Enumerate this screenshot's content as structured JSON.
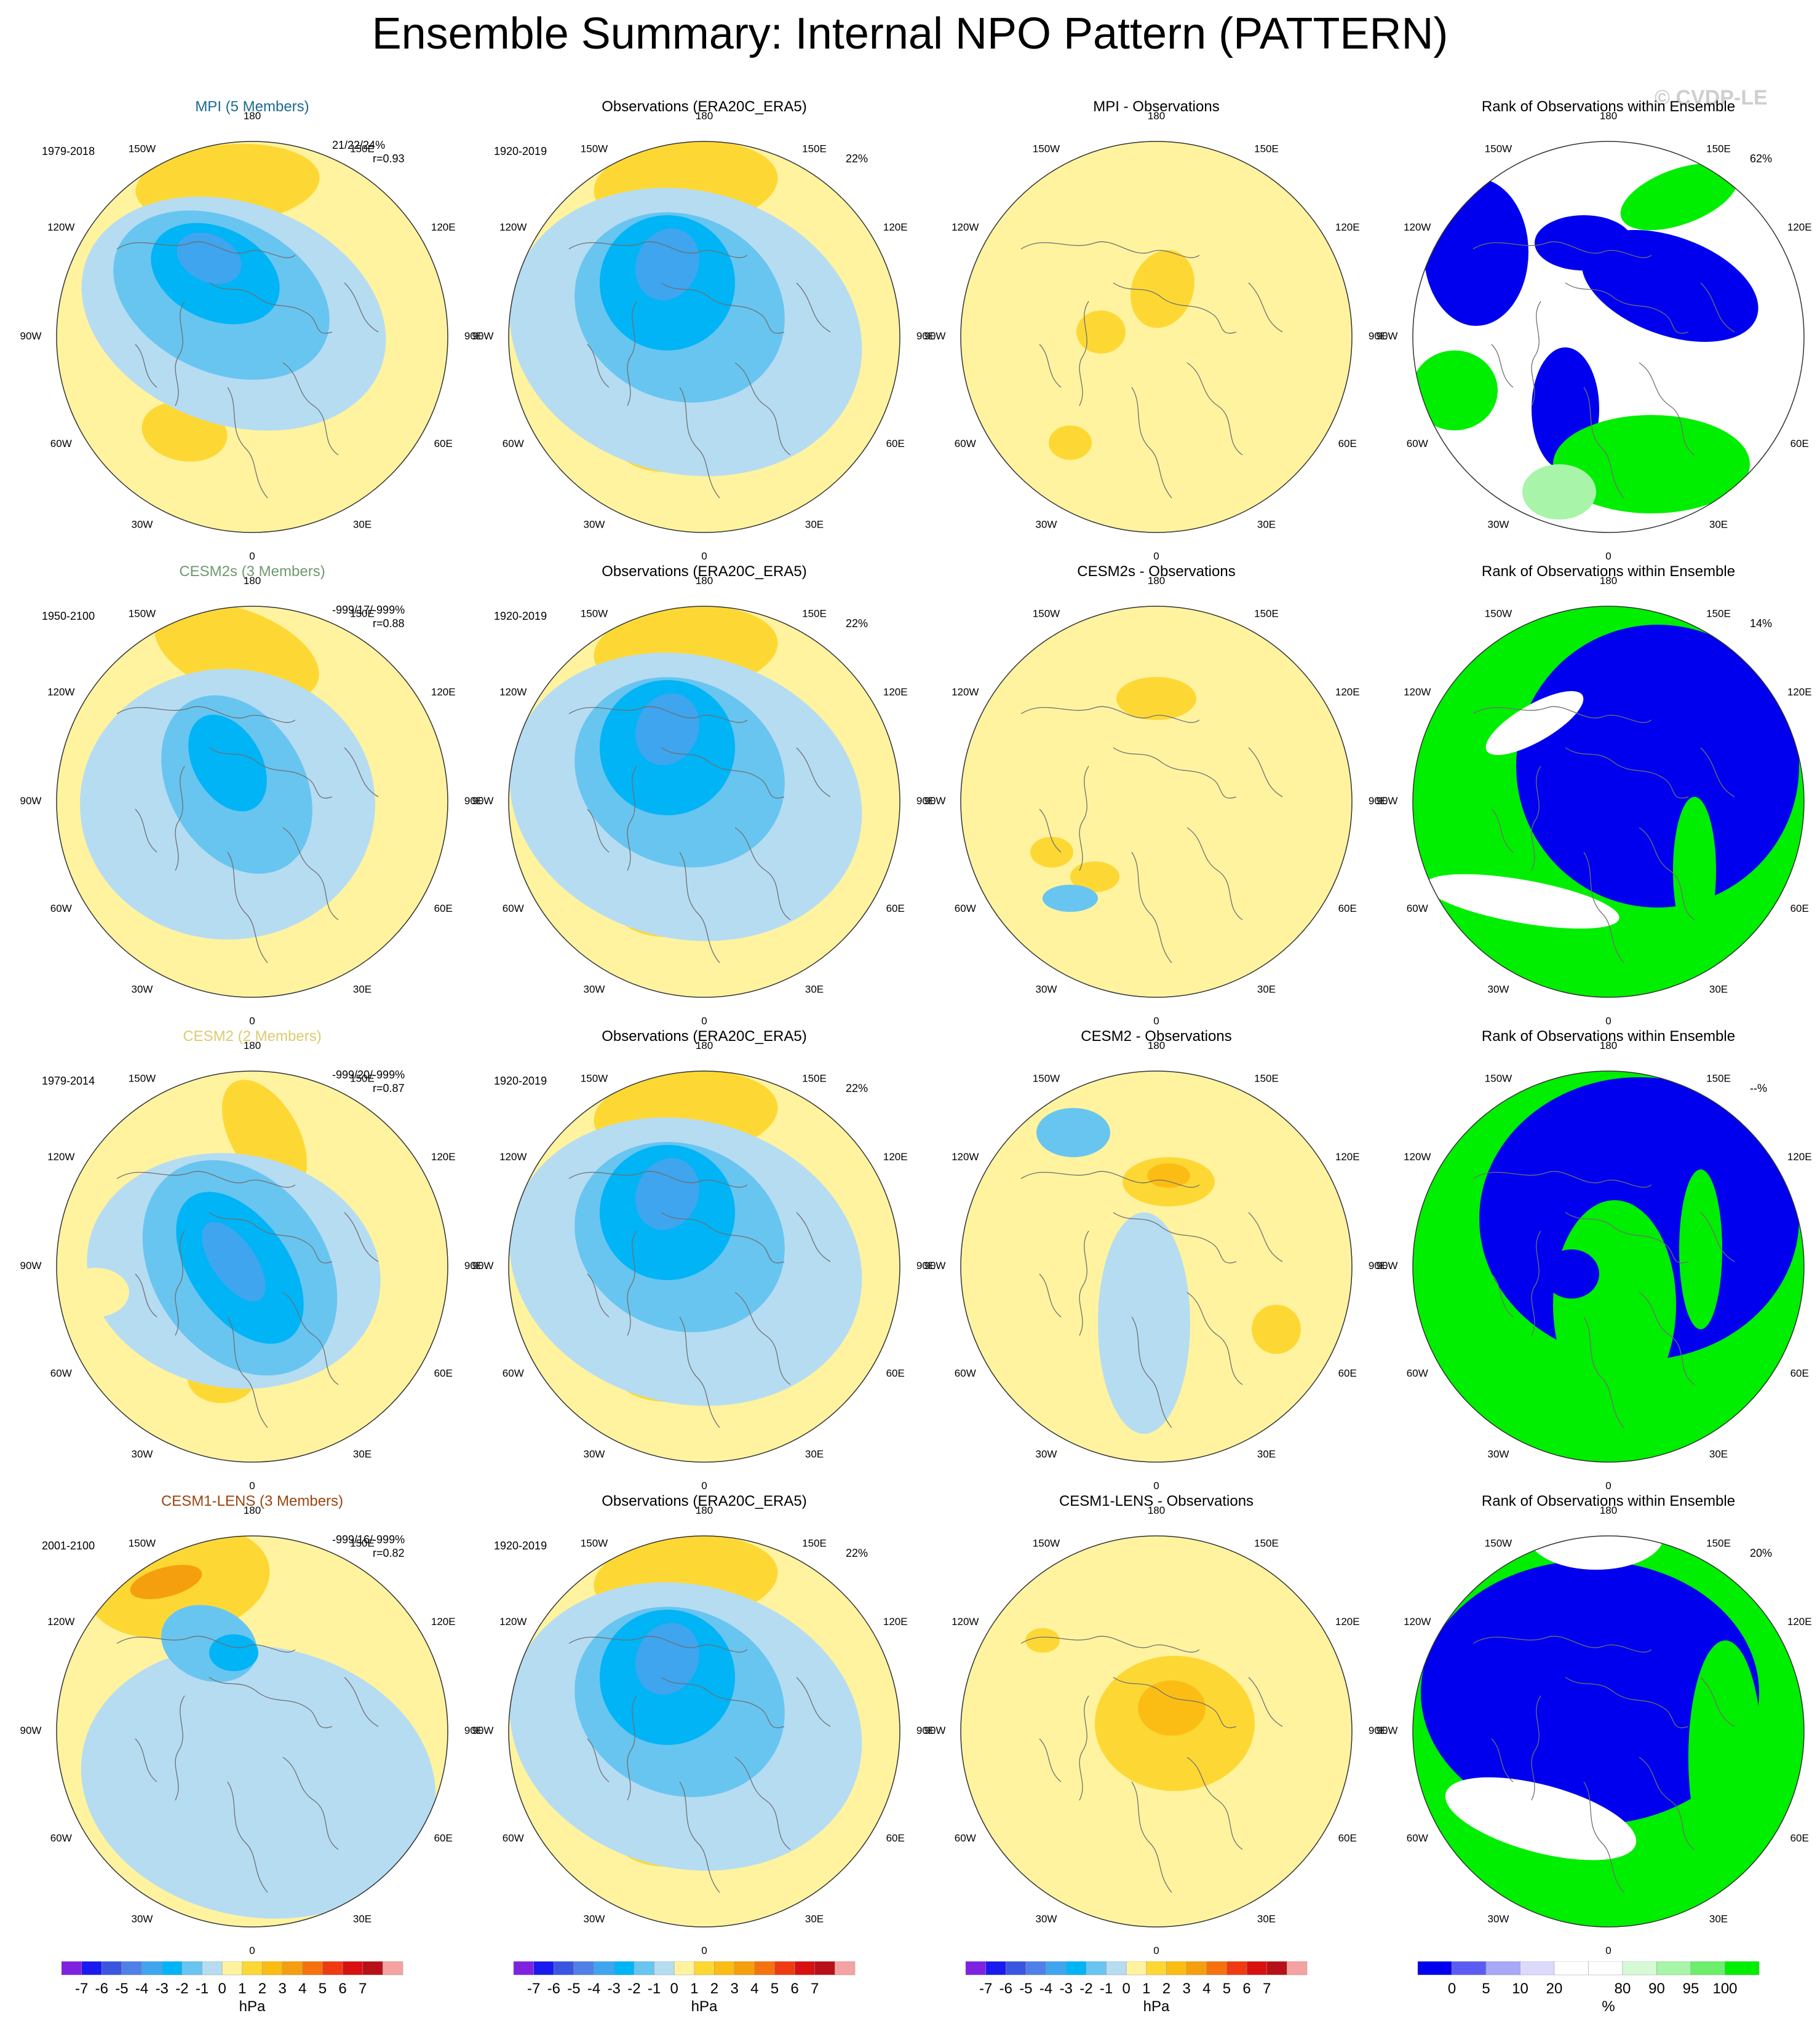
{
  "page": {
    "title": "Ensemble Summary: Internal NPO Pattern (PATTERN)",
    "credit": "© CVDP-LE"
  },
  "lon_labels": [
    "180",
    "150E",
    "120E",
    "90E",
    "60E",
    "30E",
    "0",
    "30W",
    "60W",
    "90W",
    "120W",
    "150W"
  ],
  "colors": {
    "map_scale": [
      "#7e22e0",
      "#1a1af0",
      "#3a55e0",
      "#4f80e8",
      "#3fa5ef",
      "#00b4f5",
      "#68c5f0",
      "#b6dcf2",
      "#fff3a0",
      "#fdd835",
      "#fbbd14",
      "#f59f0e",
      "#f5720e",
      "#ef3a12",
      "#d81010",
      "#b81018",
      "#f5a2a2"
    ],
    "rank_scale": [
      "#0000ee",
      "#5c5cf2",
      "#a8a8f6",
      "#dadafb",
      "#ffffff",
      "#ffffff",
      "#d6fad6",
      "#a8f4a8",
      "#6cee6c",
      "#00ee00"
    ],
    "row_title_colors": [
      "#1c6a90",
      "#6e9a6e",
      "#dccb6e",
      "#9a4512"
    ],
    "positive": "#fff3a0",
    "negative": "#b6dcf2"
  },
  "colorbar": {
    "map_labels": [
      "-7",
      "-6",
      "-5",
      "-4",
      "-3",
      "-2",
      "-1",
      "0",
      "1",
      "2",
      "3",
      "4",
      "5",
      "6",
      "7"
    ],
    "map_unit": "hPa",
    "rank_labels": [
      "0",
      "5",
      "10",
      "20",
      "80",
      "90",
      "95",
      "100"
    ],
    "rank_unit": "%"
  },
  "rows": [
    {
      "model": {
        "title": "MPI (5 Members)",
        "period": "1979-2018",
        "stats": "21/22/24%",
        "corr": "r=0.93"
      },
      "obs": {
        "title": "Observations (ERA20C_ERA5)",
        "period": "1920-2019",
        "pct": "22%"
      },
      "diff": {
        "title": "MPI - Observations"
      },
      "rank": {
        "title": "Rank of Observations within Ensemble",
        "pct": "62%"
      }
    },
    {
      "model": {
        "title": "CESM2s (3 Members)",
        "period": "1950-2100",
        "stats": "-999/17/-999%",
        "corr": "r=0.88"
      },
      "obs": {
        "title": "Observations (ERA20C_ERA5)",
        "period": "1920-2019",
        "pct": "22%"
      },
      "diff": {
        "title": "CESM2s - Observations"
      },
      "rank": {
        "title": "Rank of Observations within Ensemble",
        "pct": "14%"
      }
    },
    {
      "model": {
        "title": "CESM2 (2 Members)",
        "period": "1979-2014",
        "stats": "-999/20/-999%",
        "corr": "r=0.87"
      },
      "obs": {
        "title": "Observations (ERA20C_ERA5)",
        "period": "1920-2019",
        "pct": "22%"
      },
      "diff": {
        "title": "CESM2 - Observations"
      },
      "rank": {
        "title": "Rank of Observations within Ensemble",
        "pct": "--%"
      }
    },
    {
      "model": {
        "title": "CESM1-LENS (3 Members)",
        "period": "2001-2100",
        "stats": "-999/16/-999%",
        "corr": "r=0.82"
      },
      "obs": {
        "title": "Observations (ERA20C_ERA5)",
        "period": "1920-2019",
        "pct": "22%"
      },
      "diff": {
        "title": "CESM1-LENS - Observations"
      },
      "rank": {
        "title": "Rank of Observations within Ensemble",
        "pct": "20%"
      }
    }
  ]
}
